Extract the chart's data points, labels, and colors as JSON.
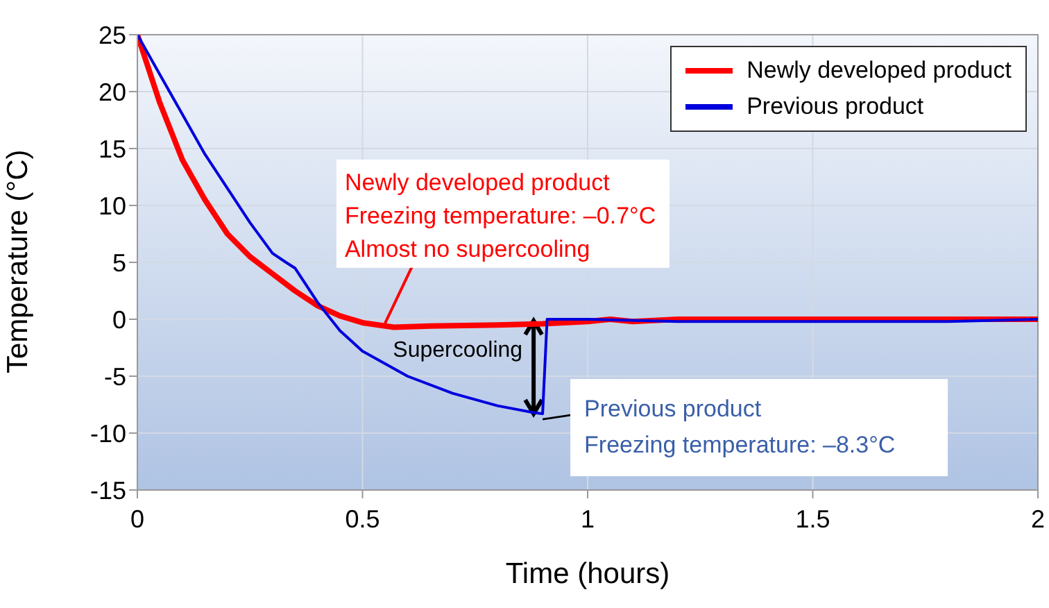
{
  "chart_data": {
    "type": "line",
    "xlabel": "Time (hours)",
    "ylabel": "Temperature (°C)",
    "xlim": [
      0,
      2
    ],
    "xticks": [
      0,
      0.5,
      1,
      1.5,
      2
    ],
    "ylim": [
      -15,
      25
    ],
    "yticks": [
      -15,
      -10,
      -5,
      0,
      5,
      10,
      15,
      20,
      25
    ],
    "grid": true,
    "legend": "top right",
    "marker": "none",
    "line_style": "solid",
    "series": [
      {
        "name": "Newly developed product",
        "color": "#ff0000",
        "x": [
          0,
          0.05,
          0.1,
          0.15,
          0.2,
          0.25,
          0.3,
          0.35,
          0.4,
          0.45,
          0.5,
          0.57,
          0.65,
          0.8,
          0.9,
          1,
          1.05,
          1.1,
          1.2,
          1.5,
          2
        ],
        "values": [
          25,
          19,
          14,
          10.5,
          7.5,
          5.5,
          4,
          2.5,
          1.2,
          0.3,
          -0.3,
          -0.7,
          -0.6,
          -0.5,
          -0.4,
          -0.2,
          0,
          -0.2,
          0,
          0,
          0
        ]
      },
      {
        "name": "Previous product",
        "color": "#0000dd",
        "x": [
          0,
          0.05,
          0.1,
          0.15,
          0.2,
          0.25,
          0.3,
          0.33,
          0.35,
          0.4,
          0.45,
          0.5,
          0.6,
          0.7,
          0.8,
          0.88,
          0.9,
          0.91,
          1,
          1.2,
          1.5,
          1.8,
          2
        ],
        "values": [
          25,
          21.5,
          18,
          14.5,
          11.5,
          8.5,
          5.8,
          5,
          4.5,
          1.5,
          -1,
          -2.8,
          -5,
          -6.5,
          -7.6,
          -8.2,
          -8.3,
          0,
          0,
          -0.2,
          -0.2,
          -0.2,
          0
        ]
      }
    ],
    "annotations": [
      {
        "text": "Newly developed product\nFreezing temperature: –0.7°C\nAlmost no supercooling",
        "x": 0.55,
        "y": -0.6
      },
      {
        "text": "Supercooling",
        "x": 0.88,
        "y": -8.3
      },
      {
        "text": "Previous product\nFreezing temperature: –8.3°C",
        "x": 0.9,
        "y": -8.3
      }
    ]
  }
}
